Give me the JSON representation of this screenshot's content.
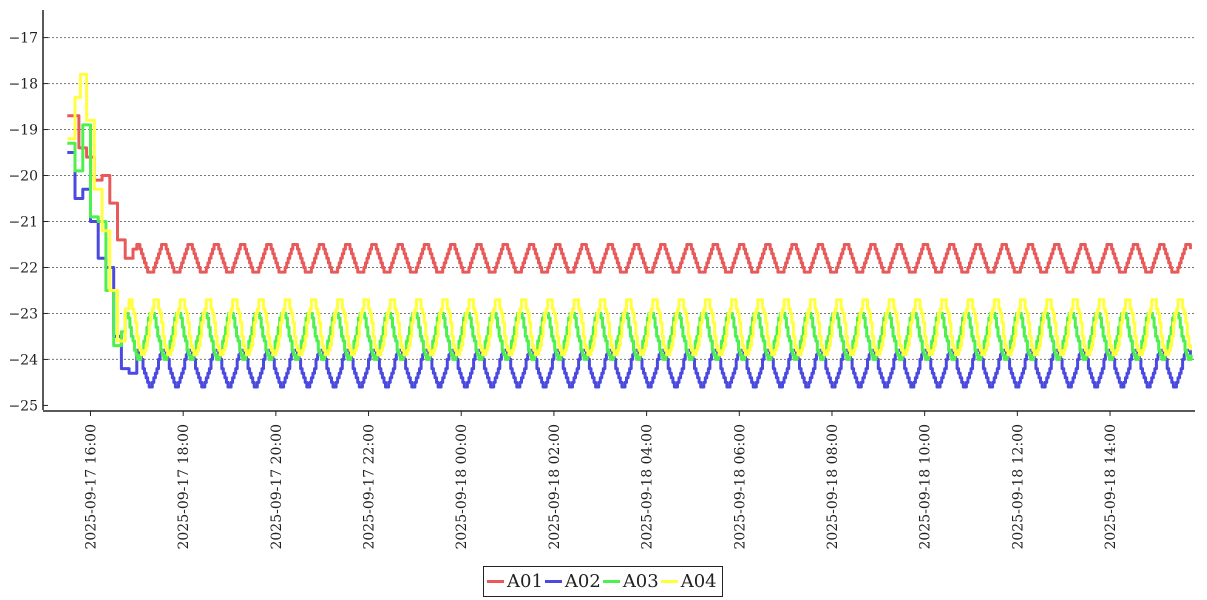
{
  "chart_data": {
    "type": "line",
    "title": "",
    "xlabel": "",
    "ylabel": "",
    "ylim": [
      -25.1,
      -16.4
    ],
    "xlim": [
      "2025-09-17 15:05",
      "2025-09-18 15:50"
    ],
    "yticks": [
      -25,
      -24,
      -23,
      -22,
      -21,
      -20,
      -19,
      -18,
      -17
    ],
    "xticks": [
      "2025-09-17 16:00",
      "2025-09-17 18:00",
      "2025-09-17 20:00",
      "2025-09-17 22:00",
      "2025-09-18 00:00",
      "2025-09-18 02:00",
      "2025-09-18 04:00",
      "2025-09-18 06:00",
      "2025-09-18 08:00",
      "2025-09-18 10:00",
      "2025-09-18 12:00",
      "2025-09-18 14:00"
    ],
    "grid": "horizontal dotted",
    "legend_position": "bottom-center",
    "series": [
      {
        "name": "A01",
        "color": "#e85a5a",
        "points": [
          [
            "2025-09-17 15:30",
            -18.7
          ],
          [
            "2025-09-17 15:45",
            -19.4
          ],
          [
            "2025-09-17 15:55",
            -19.6
          ],
          [
            "2025-09-17 16:05",
            -20.1
          ],
          [
            "2025-09-17 16:15",
            -20.0
          ],
          [
            "2025-09-17 16:25",
            -20.6
          ],
          [
            "2025-09-17 16:35",
            -21.4
          ],
          [
            "2025-09-17 16:45",
            -21.8
          ],
          [
            "2025-09-17 16:55",
            -21.6
          ]
        ],
        "steady_state": {
          "high": -21.5,
          "low": -22.1,
          "period_minutes": 34,
          "start": "2025-09-17 17:00",
          "end": "2025-09-18 15:45"
        }
      },
      {
        "name": "A02",
        "color": "#4a4ae0",
        "points": [
          [
            "2025-09-17 15:30",
            -19.5
          ],
          [
            "2025-09-17 15:40",
            -20.5
          ],
          [
            "2025-09-17 15:50",
            -20.3
          ],
          [
            "2025-09-17 16:00",
            -21.0
          ],
          [
            "2025-09-17 16:10",
            -21.8
          ],
          [
            "2025-09-17 16:20",
            -22.0
          ],
          [
            "2025-09-17 16:30",
            -23.5
          ],
          [
            "2025-09-17 16:40",
            -24.2
          ],
          [
            "2025-09-17 16:50",
            -24.3
          ]
        ],
        "steady_state": {
          "high": -23.8,
          "low": -24.6,
          "period_minutes": 34,
          "start": "2025-09-17 17:00",
          "end": "2025-09-18 15:45"
        }
      },
      {
        "name": "A03",
        "color": "#4df04d",
        "points": [
          [
            "2025-09-17 15:30",
            -19.3
          ],
          [
            "2025-09-17 15:40",
            -19.9
          ],
          [
            "2025-09-17 15:50",
            -18.9
          ],
          [
            "2025-09-17 16:00",
            -20.9
          ],
          [
            "2025-09-17 16:10",
            -21.0
          ],
          [
            "2025-09-17 16:20",
            -22.5
          ],
          [
            "2025-09-17 16:30",
            -23.7
          ],
          [
            "2025-09-17 16:40",
            -23.4
          ]
        ],
        "steady_state": {
          "high": -23.0,
          "low": -24.0,
          "period_minutes": 34,
          "start": "2025-09-17 16:45",
          "end": "2025-09-18 15:45"
        }
      },
      {
        "name": "A04",
        "color": "#ffff40",
        "points": [
          [
            "2025-09-17 15:30",
            -19.2
          ],
          [
            "2025-09-17 15:40",
            -18.3
          ],
          [
            "2025-09-17 15:47",
            -17.8
          ],
          [
            "2025-09-17 15:55",
            -18.8
          ],
          [
            "2025-09-17 16:05",
            -20.3
          ],
          [
            "2025-09-17 16:15",
            -21.2
          ],
          [
            "2025-09-17 16:25",
            -22.5
          ],
          [
            "2025-09-17 16:35",
            -23.6
          ],
          [
            "2025-09-17 16:45",
            -22.9
          ]
        ],
        "steady_state": {
          "high": -22.7,
          "low": -23.9,
          "period_minutes": 34,
          "start": "2025-09-17 16:50",
          "end": "2025-09-18 15:45"
        }
      }
    ]
  }
}
